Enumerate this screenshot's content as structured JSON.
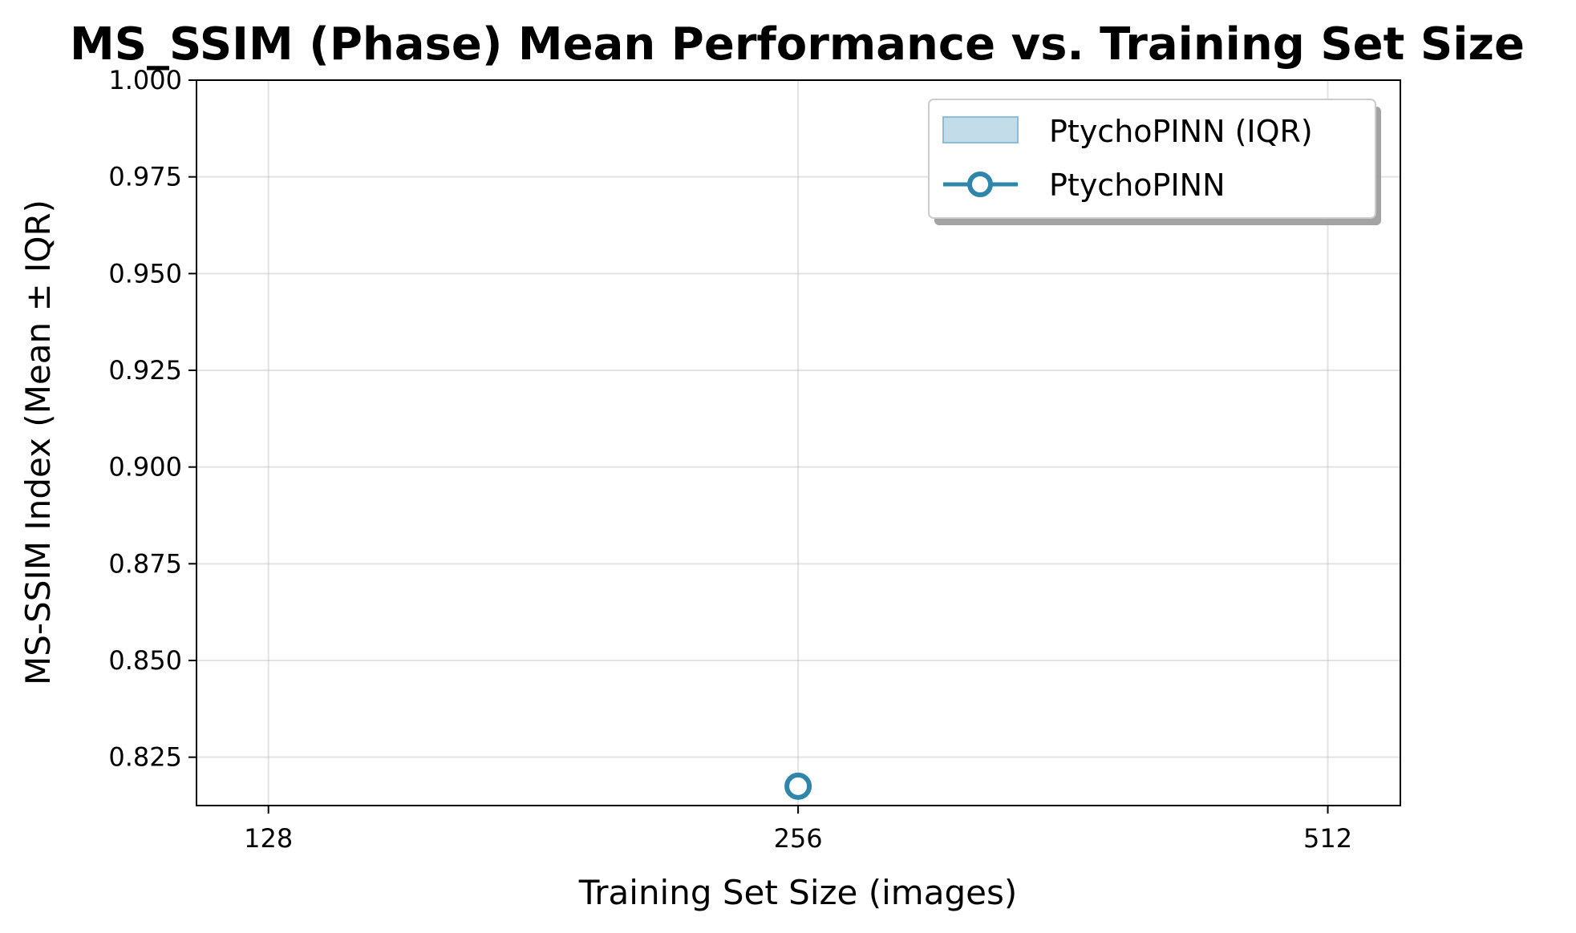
{
  "chart_data": {
    "type": "line",
    "title": "MS_SSIM (Phase) Mean Performance vs. Training Set Size",
    "xlabel": "Training Set Size (images)",
    "ylabel": "MS-SSIM Index (Mean ± IQR)",
    "x_scale": "log2",
    "xlim": [
      116.5,
      563.0
    ],
    "ylim": [
      0.8125,
      1.0
    ],
    "x_ticks": [
      128,
      256,
      512
    ],
    "x_tick_labels": [
      "128",
      "256",
      "512"
    ],
    "y_ticks": [
      0.825,
      0.85,
      0.875,
      0.9,
      0.925,
      0.95,
      0.975,
      1.0
    ],
    "y_tick_labels": [
      "0.825",
      "0.850",
      "0.875",
      "0.900",
      "0.925",
      "0.950",
      "0.975",
      "1.000"
    ],
    "grid": true,
    "legend_position": "top-right",
    "series": [
      {
        "name": "PtychoPINN",
        "color": "#2e86ab",
        "marker": "open-circle",
        "x": [
          256
        ],
        "y": [
          0.8175
        ]
      }
    ],
    "bands": [
      {
        "name": "PtychoPINN (IQR)",
        "color": "#a8cfe0",
        "x": [
          256
        ],
        "lower": [
          0.8175
        ],
        "upper": [
          0.8175
        ]
      }
    ],
    "legend": [
      "PtychoPINN (IQR)",
      "PtychoPINN"
    ]
  }
}
